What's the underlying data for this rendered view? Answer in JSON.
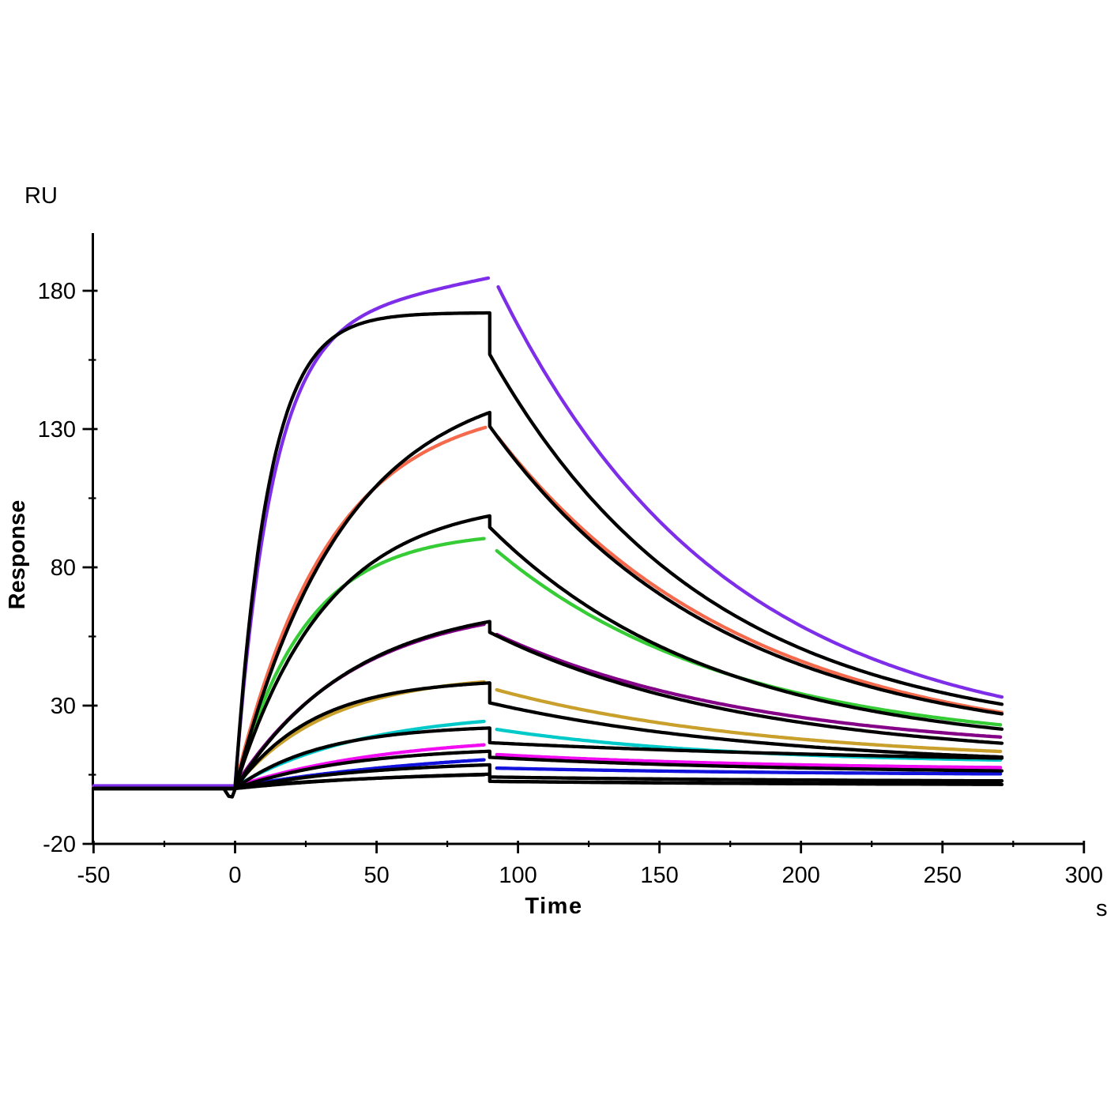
{
  "labels": {
    "y_unit": "RU",
    "y_title": "Response",
    "x_title": "Time",
    "x_unit": "s"
  },
  "chart_data": {
    "type": "line",
    "note": "SPR sensorgram: colored experimental binding curves for a concentration series with overlaid black kinetic fit curves. Association phase t=0-90 s, dissociation t=90-271 s, baseline from t=-50 s at 0 RU.",
    "xlabel": "Time",
    "x_unit": "s",
    "ylabel": "Response",
    "y_unit": "RU",
    "xlim": [
      -50,
      300
    ],
    "ylim": [
      -20,
      200
    ],
    "x_ticks_major": [
      -50,
      0,
      50,
      100,
      150,
      200,
      250,
      300
    ],
    "x_ticks_minor": [
      -25,
      25,
      75,
      125,
      175,
      225,
      275
    ],
    "y_ticks_major": [
      -20,
      30,
      80,
      130,
      180
    ],
    "y_ticks_minor": [
      5,
      55,
      105,
      155
    ],
    "grid": false,
    "legend": "none",
    "injection_start_s": 0,
    "injection_end_s": 90,
    "curve_end_s": 271,
    "series": [
      {
        "name": "violet",
        "color": "#7E2EE8",
        "baseline_ru": 1.0,
        "k_obs": 0.078,
        "drift_ru_per_s": 0.2,
        "peak_ru": 184.6,
        "assoc_end_s": 89.5,
        "resume_s": 93.0,
        "resume_ru": 181.4,
        "end_ru": 33.1,
        "k_d": 0.0125
      },
      {
        "name": "coral",
        "color": "#F5694C",
        "baseline_ru": 0.8,
        "k_obs": 0.03,
        "drift_ru_per_s": 0,
        "peak_ru": 130.6,
        "assoc_end_s": 88.5,
        "resume_s": 93.0,
        "resume_ru": 127.0,
        "end_ru": 27.5,
        "k_d": 0.0115
      },
      {
        "name": "green",
        "color": "#35CC35",
        "baseline_ru": 0.8,
        "k_obs": 0.04,
        "drift_ru_per_s": 0,
        "peak_ru": 90.4,
        "assoc_end_s": 88.0,
        "resume_s": 92.5,
        "resume_ru": 86.0,
        "end_ru": 23.0,
        "k_d": 0.012
      },
      {
        "name": "dark-purple",
        "color": "#840087",
        "baseline_ru": 0.8,
        "k_obs": 0.024,
        "drift_ru_per_s": 0,
        "peak_ru": 59.4,
        "assoc_end_s": 88.0,
        "resume_s": 92.5,
        "resume_ru": 55.7,
        "end_ru": 18.6,
        "k_d": 0.011
      },
      {
        "name": "gold",
        "color": "#C9A02C",
        "baseline_ru": 0.8,
        "k_obs": 0.03,
        "drift_ru_per_s": 0,
        "peak_ru": 38.6,
        "assoc_end_s": 88.0,
        "resume_s": 92.5,
        "resume_ru": 35.7,
        "end_ru": 13.4,
        "k_d": 0.0105
      },
      {
        "name": "cyan",
        "color": "#00C9C9",
        "baseline_ru": 0.7,
        "k_obs": 0.022,
        "drift_ru_per_s": 0,
        "peak_ru": 24.3,
        "assoc_end_s": 88.0,
        "resume_s": 92.5,
        "resume_ru": 21.4,
        "end_ru": 10.3,
        "k_d": 0.0125
      },
      {
        "name": "magenta",
        "color": "#F20CF2",
        "baseline_ru": 0.7,
        "k_obs": 0.018,
        "drift_ru_per_s": 0,
        "peak_ru": 15.8,
        "assoc_end_s": 88.0,
        "resume_s": 92.5,
        "resume_ru": 12.3,
        "end_ru": 7.6,
        "k_d": 0.01
      },
      {
        "name": "blue",
        "color": "#1212DD",
        "baseline_ru": 0.6,
        "k_obs": 0.012,
        "drift_ru_per_s": 0,
        "peak_ru": 10.4,
        "assoc_end_s": 88.0,
        "resume_s": 92.5,
        "resume_ru": 7.4,
        "end_ru": 5.3,
        "k_d": 0.009
      },
      {
        "name": "black-low",
        "color": "#000000",
        "baseline_ru": 0.5,
        "k_obs": 0.015,
        "drift_ru_per_s": 0,
        "peak_ru": 5.0,
        "assoc_end_s": 88.0,
        "resume_s": 92.5,
        "resume_ru": 2.6,
        "end_ru": 1.7,
        "k_d": 0.008
      }
    ],
    "fits": [
      {
        "name": "fit-1",
        "color": "#000000",
        "plateau_ru": 172.0,
        "k_obs": 0.085,
        "drop_to_ru": 157.0,
        "end_ru": 30.5,
        "k_d": 0.013,
        "dip": true
      },
      {
        "name": "fit-2",
        "color": "#000000",
        "plateau_ru": 136.0,
        "k_obs": 0.026,
        "drop_to_ru": 131.0,
        "end_ru": 27.0,
        "k_d": 0.0122
      },
      {
        "name": "fit-3",
        "color": "#000000",
        "plateau_ru": 98.6,
        "k_obs": 0.031,
        "drop_to_ru": 94.5,
        "end_ru": 21.5,
        "k_d": 0.0125
      },
      {
        "name": "fit-4",
        "color": "#000000",
        "plateau_ru": 60.4,
        "k_obs": 0.024,
        "drop_to_ru": 56.5,
        "end_ru": 16.4,
        "k_d": 0.011
      },
      {
        "name": "fit-5",
        "color": "#000000",
        "plateau_ru": 38.2,
        "k_obs": 0.036,
        "drop_to_ru": 31.0,
        "end_ru": 11.4,
        "k_d": 0.01
      },
      {
        "name": "fit-6",
        "color": "#000000",
        "plateau_ru": 21.9,
        "k_obs": 0.033,
        "drop_to_ru": 16.6,
        "end_ru": 11.0,
        "k_d": 0.006
      },
      {
        "name": "fit-7",
        "color": "#000000",
        "plateau_ru": 13.5,
        "k_obs": 0.024,
        "drop_to_ru": 11.3,
        "end_ru": 6.4,
        "k_d": 0.009
      },
      {
        "name": "fit-8",
        "color": "#000000",
        "plateau_ru": 8.6,
        "k_obs": 0.02,
        "drop_to_ru": 4.2,
        "end_ru": 2.8,
        "k_d": 0.009
      },
      {
        "name": "fit-9",
        "color": "#000000",
        "plateau_ru": 5.2,
        "k_obs": 0.016,
        "drop_to_ru": 2.6,
        "end_ru": 1.5,
        "k_d": 0.008
      }
    ]
  }
}
